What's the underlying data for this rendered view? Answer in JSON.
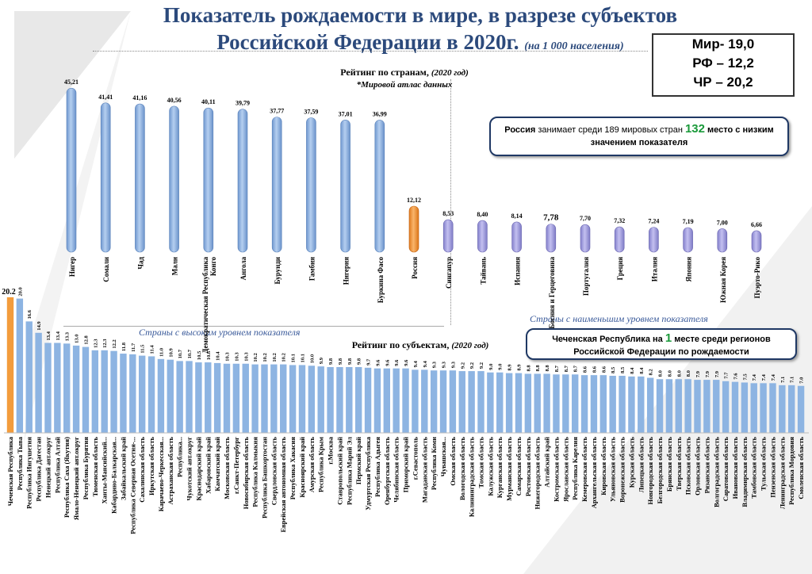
{
  "title": {
    "line1": "Показатель рождаемости в мире, в разрезе субъектов",
    "line2": "Российской Федерации в 2020г.",
    "unit": "(на 1 000 населения)"
  },
  "summary": {
    "world": "Мир- 19,0",
    "rf": "РФ – 12,2",
    "chr": "ЧР – 20,2"
  },
  "russia_box": {
    "pre": "Россия",
    "mid": " занимает среди 189 мировых стран ",
    "rank": "132",
    "post": " место с низким значением показателя"
  },
  "chechnya_box": {
    "pre": "Чеченская Республика на ",
    "rank": "1",
    "post": " месте среди регионов Российской Федерации по рождаемости"
  },
  "colors": {
    "blue": "#8db4e2",
    "orange": "#f39c3c",
    "lavender": "#a29ee0",
    "title": "#2c4a7c"
  },
  "chart_data": [
    {
      "type": "bar",
      "title": "Рейтинг по странам,",
      "title_year": "(2020 год)",
      "subtitle": "*Мировой атлас данных",
      "group_labels": [
        "Страны с высоким уровнем показателя",
        "Страны с наименьшим уровнем показателя"
      ],
      "categories": [
        "Нигер",
        "Сомали",
        "Чад",
        "Мали",
        "Демократическая Республика Конго",
        "Ангола",
        "Бурунди",
        "Гамбия",
        "Нигерия",
        "Буркина Фасо",
        "Россия",
        "Сингапур",
        "Тайвань",
        "Испания",
        "Босния и Герцеговина",
        "Португалия",
        "Греция",
        "Италия",
        "Япония",
        "Южная Корея",
        "Пуэрто-Рико"
      ],
      "values": [
        45.21,
        41.41,
        41.16,
        40.56,
        40.11,
        39.79,
        37.77,
        37.59,
        37.01,
        36.99,
        12.12,
        8.53,
        8.4,
        8.14,
        7.78,
        7.7,
        7.32,
        7.24,
        7.19,
        7.0,
        6.66
      ],
      "labels": [
        "45,21",
        "41,41",
        "41,16",
        "40,56",
        "40,11",
        "39,79",
        "37,77",
        "37,59",
        "37,01",
        "36,99",
        "12,12",
        "8,53",
        "8,40",
        "8,14",
        "7,78",
        "7,70",
        "7,32",
        "7,24",
        "7,19",
        "7,00",
        "6,66"
      ],
      "highlight": "Россия"
    },
    {
      "type": "bar",
      "title": "Рейтинг по субъектам,",
      "title_year": "(2020 год)",
      "categories": [
        "Чеченская Республика",
        "Республика Тыва",
        "Республика Ингушетия",
        "Республика Дагестан",
        "Ненецкий авт.округ",
        "Республика Алтай",
        "Республика Саха (Якутия)",
        "Ямало-Ненецкий авт.округ",
        "Республика Бурятия",
        "Тюменская область",
        "Ханты-Мансийский...",
        "Кабардино-Балкарская...",
        "Забайкальский край",
        "Республика Северная Осетия-...",
        "Сахалинская область",
        "Иркутская область",
        "Карачаево-Черкесская...",
        "Астраханская область",
        "Республика...",
        "Чукотский авт.округ",
        "Краснодарский край",
        "Хабаровский край",
        "Камчатский край",
        "Московская область",
        "г.Санкт-Петербург",
        "Новосибирская область",
        "Республика Калмыкия",
        "Республика Башкортостан",
        "Свердловская область",
        "Еврейская автономная область",
        "Республика Хакасия",
        "Красноярский край",
        "Амурская область",
        "Республика Крым",
        "г.Москва",
        "Ставропольский край",
        "Республика Марий Эл",
        "Пермский край",
        "Удмуртская Республика",
        "Республика Адыгея",
        "Оренбургская область",
        "Челябинская область",
        "Приморский край",
        "г.Севастополь",
        "Магаданская область",
        "Республика Коми",
        "Чувашская...",
        "Омская область",
        "Вологодская область",
        "Калининградская область",
        "Томская область",
        "Калужская область",
        "Курганская область",
        "Мурманская область",
        "Самарская область",
        "Ростовская область",
        "Нижегородская область",
        "Алтайский край",
        "Костромская область",
        "Ярославская область",
        "Республика Карелия",
        "Кемеровская область",
        "Архангельская область",
        "Кировская область",
        "Ульяновская область",
        "Воронежская область",
        "Курская область",
        "Липецкая область",
        "Новгородская область",
        "Белгородская область",
        "Брянская область",
        "Тверская область",
        "Псковская область",
        "Орловская область",
        "Рязанская область",
        "Волгоградская область",
        "Саратовская область",
        "Ивановская область",
        "Владимирская область",
        "Тамбовская область",
        "Тульская область",
        "Пензенская область",
        "Ленинградская область",
        "Республика Мордовия",
        "Смоленская область"
      ],
      "values": [
        20.2,
        20.0,
        16.6,
        14.9,
        13.4,
        13.4,
        13.3,
        13.0,
        12.8,
        12.3,
        12.3,
        12.2,
        11.8,
        11.7,
        11.5,
        11.4,
        11.0,
        10.9,
        10.7,
        10.7,
        10.5,
        10.5,
        10.4,
        10.3,
        10.3,
        10.3,
        10.2,
        10.2,
        10.2,
        10.2,
        10.1,
        10.1,
        10.0,
        9.9,
        9.8,
        9.8,
        9.8,
        9.8,
        9.7,
        9.6,
        9.6,
        9.6,
        9.6,
        9.4,
        9.4,
        9.3,
        9.3,
        9.3,
        9.2,
        9.2,
        9.2,
        9.0,
        9.0,
        8.9,
        8.9,
        8.8,
        8.8,
        8.8,
        8.7,
        8.7,
        8.7,
        8.6,
        8.6,
        8.6,
        8.5,
        8.5,
        8.4,
        8.4,
        8.2,
        8.0,
        8.0,
        8.0,
        8.0,
        7.9,
        7.9,
        7.9,
        7.7,
        7.6,
        7.5,
        7.4,
        7.4,
        7.4,
        7.1,
        7.1,
        7.0
      ],
      "highlight": "Чеченская Республика"
    }
  ]
}
